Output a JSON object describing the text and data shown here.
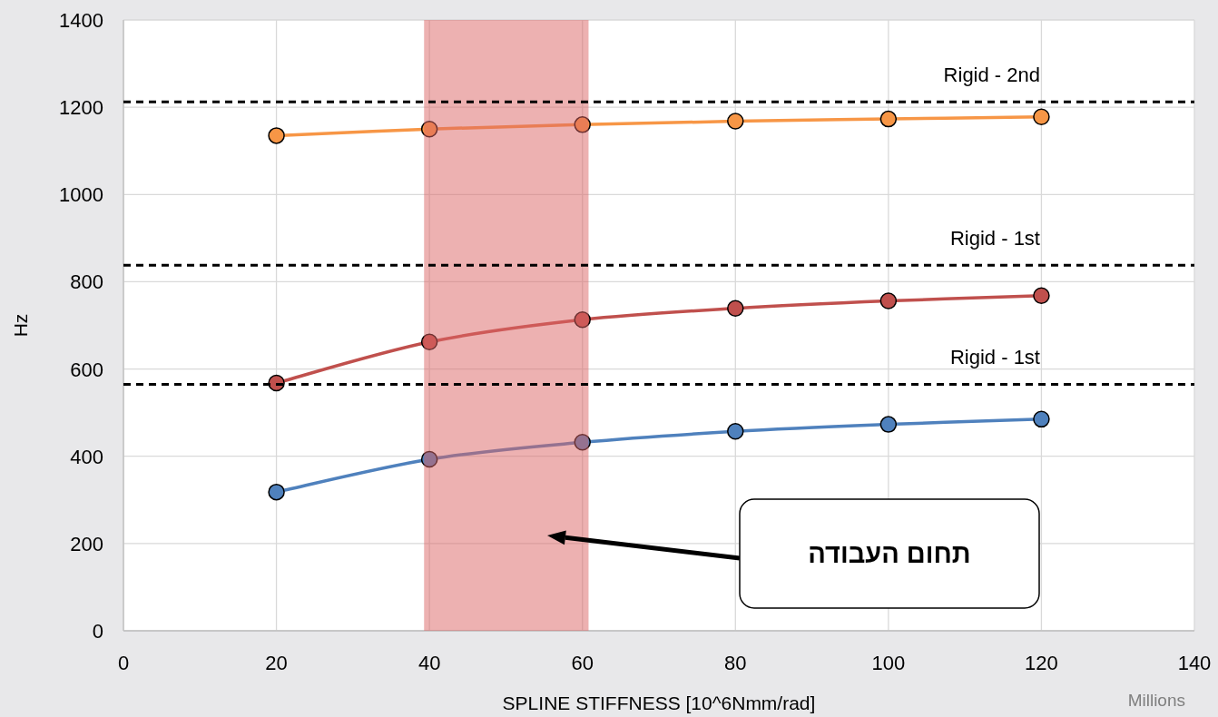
{
  "chart_data": {
    "type": "line",
    "xlabel": "SPLINE STIFFNESS [10^6Nmm/rad]",
    "ylabel": "Hz",
    "x": [
      20,
      40,
      60,
      80,
      100,
      120
    ],
    "series": [
      {
        "color": "#f79646",
        "values": [
          1135,
          1150,
          1160,
          1168,
          1173,
          1178
        ]
      },
      {
        "color": "#c0504d",
        "values": [
          568,
          662,
          713,
          739,
          756,
          768
        ]
      },
      {
        "color": "#4f81bd",
        "values": [
          318,
          393,
          432,
          457,
          473,
          485
        ]
      }
    ],
    "xlim": [
      0,
      140
    ],
    "xticks": [
      0,
      20,
      40,
      60,
      80,
      100,
      120,
      140
    ],
    "ylim": [
      0,
      1400
    ],
    "yticks": [
      0,
      200,
      400,
      600,
      800,
      1000,
      1200,
      1400
    ],
    "grid": true,
    "marker": "circle",
    "line_style": "solid",
    "ref_lines": [
      {
        "axis": "y",
        "value": 1212,
        "label": "Rigid - 2nd",
        "color": "#000000",
        "line_style": "dashed"
      },
      {
        "axis": "y",
        "value": 838,
        "label": "Rigid - 1st",
        "color": "#000000",
        "line_style": "dashed"
      },
      {
        "axis": "y",
        "value": 565,
        "label": "Rigid - 1st",
        "color": "#000000",
        "line_style": "dashed"
      }
    ],
    "bands": [
      {
        "axis": "x",
        "from": 39.3,
        "to": 60.8,
        "color": "#dc6464"
      }
    ],
    "annotations": [
      "Millions",
      "תחום העבודה"
    ]
  }
}
